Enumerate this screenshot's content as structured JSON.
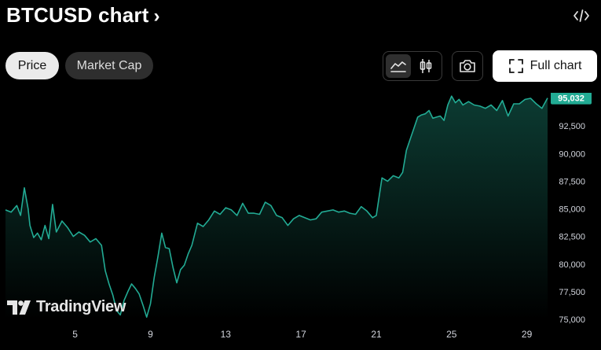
{
  "header": {
    "title": "BTCUSD chart",
    "chevron": "›",
    "embed_icon": "code-embed-icon"
  },
  "tabs": [
    {
      "label": "Price",
      "active": true
    },
    {
      "label": "Market Cap",
      "active": false
    }
  ],
  "toolbar": {
    "area_chart_icon": "area-chart-icon",
    "candles_icon": "candlestick-icon",
    "snapshot_icon": "camera-icon",
    "full_chart_label": "Full chart",
    "full_chart_icon": "expand-icon"
  },
  "branding": {
    "logo_text": "TradingView"
  },
  "colors": {
    "background": "#000000",
    "line": "#22ab94",
    "area_top": "#0c3b32",
    "price_badge": "#22ab94",
    "axis_text": "#d1d4dc"
  },
  "chart_data": {
    "type": "area",
    "x_tick_labels": [
      "5",
      "9",
      "13",
      "17",
      "21",
      "25",
      "29"
    ],
    "y_tick_labels": [
      "92,500",
      "90,000",
      "87,500",
      "85,000",
      "82,500",
      "80,000",
      "77,500",
      "75,000"
    ],
    "y_ticks": [
      92500,
      90000,
      87500,
      85000,
      82500,
      80000,
      77500,
      75000
    ],
    "ylim": [
      75000,
      95500
    ],
    "xlim": [
      1.3,
      30.1
    ],
    "last_price": 95032,
    "last_price_label": "95,032",
    "series": [
      {
        "x": [
          1.3,
          1.6,
          1.9,
          2.1,
          2.3,
          2.5,
          2.6,
          2.8,
          3.0,
          3.2,
          3.4,
          3.6,
          3.8,
          4.0,
          4.3,
          4.6,
          4.9,
          5.2,
          5.5,
          5.8,
          6.1,
          6.4,
          6.6,
          6.8,
          7.0,
          7.2,
          7.4,
          7.6,
          7.8,
          8.0,
          8.2,
          8.4,
          8.6,
          8.8,
          9.0,
          9.2,
          9.4,
          9.6,
          9.8,
          10.0,
          10.2,
          10.4,
          10.6,
          10.8,
          11.0,
          11.2,
          11.5,
          11.8,
          12.1,
          12.4,
          12.7,
          13.0,
          13.3,
          13.6,
          13.9,
          14.2,
          14.5,
          14.8,
          15.1,
          15.4,
          15.7,
          16.0,
          16.3,
          16.6,
          16.9,
          17.2,
          17.5,
          17.8,
          18.1,
          18.4,
          18.7,
          19.0,
          19.3,
          19.6,
          19.9,
          20.2,
          20.5,
          20.8,
          21.0,
          21.3,
          21.6,
          21.9,
          22.2,
          22.4,
          22.6,
          22.8,
          23.0,
          23.2,
          23.4,
          23.6,
          23.8,
          24.0,
          24.2,
          24.4,
          24.6,
          24.8,
          25.0,
          25.2,
          25.4,
          25.6,
          25.9,
          26.2,
          26.5,
          26.8,
          27.1,
          27.4,
          27.7,
          28.0,
          28.3,
          28.6,
          28.9,
          29.2,
          29.5,
          29.8,
          30.1
        ],
        "y": [
          84900,
          84700,
          85300,
          84400,
          86900,
          85000,
          83500,
          82400,
          82800,
          82200,
          83500,
          82300,
          85400,
          82900,
          83900,
          83300,
          82500,
          82900,
          82600,
          82000,
          82300,
          81700,
          79400,
          78200,
          77200,
          75800,
          75400,
          76700,
          77500,
          78200,
          77800,
          77300,
          76300,
          75200,
          76400,
          78800,
          80700,
          82800,
          81500,
          81400,
          79700,
          78300,
          79500,
          79900,
          80900,
          81700,
          83700,
          83400,
          84000,
          84800,
          84500,
          85100,
          84900,
          84400,
          85500,
          84600,
          84600,
          84500,
          85600,
          85300,
          84400,
          84200,
          83500,
          84100,
          84400,
          84200,
          84000,
          84100,
          84700,
          84800,
          84900,
          84700,
          84800,
          84600,
          84500,
          85200,
          84800,
          84200,
          84400,
          87800,
          87500,
          88000,
          87800,
          88300,
          90300,
          91300,
          92300,
          93300,
          93500,
          93600,
          93900,
          93200,
          93300,
          93400,
          93000,
          94400,
          95200,
          94600,
          94900,
          94400,
          94700,
          94400,
          94300,
          94100,
          94400,
          93900,
          94800,
          93400,
          94500,
          94500,
          94900,
          95000,
          94500,
          94100,
          95032
        ]
      }
    ]
  }
}
